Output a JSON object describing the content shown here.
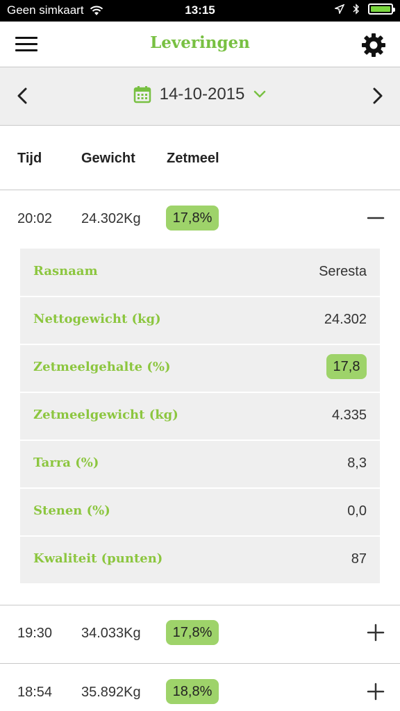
{
  "status_bar": {
    "carrier": "Geen simkaart",
    "time": "13:15",
    "battery_percent": 100
  },
  "navbar": {
    "title": "Leveringen",
    "menu_icon": "hamburger-menu-icon",
    "settings_icon": "gear-icon"
  },
  "date_selector": {
    "date": "14-10-2015",
    "prev_icon": "chevron-left-icon",
    "next_icon": "chevron-right-icon",
    "calendar_icon": "calendar-icon",
    "dropdown_icon": "chevron-down-icon"
  },
  "table": {
    "headers": {
      "time": "Tijd",
      "weight": "Gewicht",
      "starch": "Zetmeel"
    },
    "rows": [
      {
        "time": "20:02",
        "weight": "24.302Kg",
        "starch": "17,8%",
        "expanded": true
      },
      {
        "time": "19:30",
        "weight": "34.033Kg",
        "starch": "17,8%",
        "expanded": false
      },
      {
        "time": "18:54",
        "weight": "35.892Kg",
        "starch": "18,8%",
        "expanded": false
      }
    ]
  },
  "details": [
    {
      "label": "Rasnaam",
      "value": "Seresta",
      "highlight": false
    },
    {
      "label": "Nettogewicht (kg)",
      "value": "24.302",
      "highlight": false
    },
    {
      "label": "Zetmeelgehalte (%)",
      "value": "17,8",
      "highlight": true
    },
    {
      "label": "Zetmeelgewicht (kg)",
      "value": "4.335",
      "highlight": false
    },
    {
      "label": "Tarra (%)",
      "value": "8,3",
      "highlight": false
    },
    {
      "label": "Stenen (%)",
      "value": "0,0",
      "highlight": false
    },
    {
      "label": "Kwaliteit (punten)",
      "value": "87",
      "highlight": false
    }
  ],
  "colors": {
    "accent_green": "#78c042",
    "label_green": "#8cc63f",
    "badge_green": "#9ed36a",
    "panel_gray": "#efefef"
  }
}
